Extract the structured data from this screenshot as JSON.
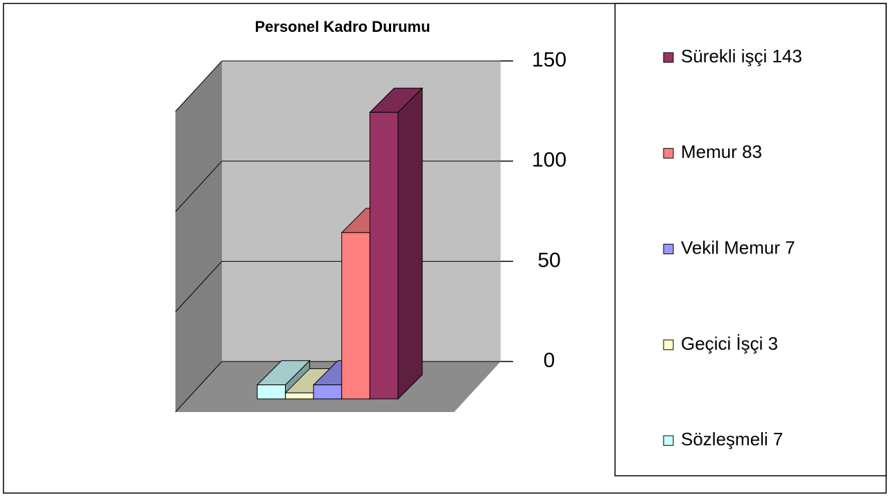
{
  "chart_data": {
    "type": "bar3d",
    "title": "Personel Kadro Durumu",
    "categories": [
      "Sözleşmeli 7",
      "Geçici İşçi 3",
      "Vekil Memur 7",
      "Memur 83",
      "Sürekli işçi 143"
    ],
    "values": [
      7,
      3,
      7,
      83,
      143
    ],
    "colors": [
      "#ccffff",
      "#ffffcc",
      "#9999ff",
      "#ff8080",
      "#993366"
    ],
    "ylim": [
      0,
      150
    ],
    "yticks": [
      0,
      50,
      100,
      150
    ],
    "grid": true
  }
}
